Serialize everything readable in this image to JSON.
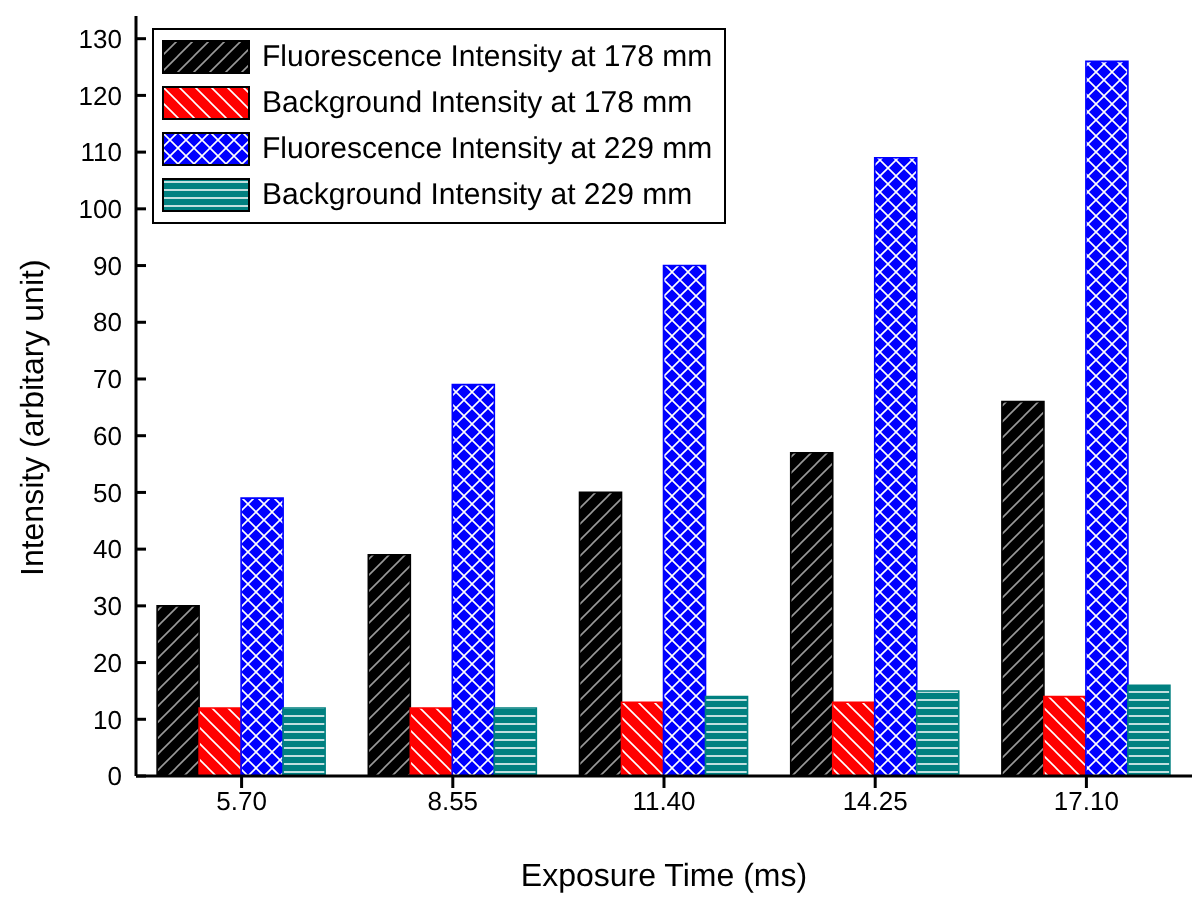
{
  "chart_data": {
    "type": "bar",
    "xlabel": "Exposure Time (ms)",
    "ylabel": "Intensity (arbitary unit)",
    "categories": [
      "5.70",
      "8.55",
      "11.40",
      "14.25",
      "17.10"
    ],
    "series": [
      {
        "name": "Fluorescence Intensity at 178 mm",
        "color": "#000000",
        "values": [
          30,
          39,
          50,
          57,
          66
        ]
      },
      {
        "name": "Background Intensity at 178 mm",
        "color": "#ff0000",
        "values": [
          12,
          12,
          13,
          13,
          14
        ]
      },
      {
        "name": "Fluorescence Intensity at 229 mm",
        "color": "#0000ff",
        "values": [
          49,
          69,
          90,
          109,
          126
        ]
      },
      {
        "name": "Background Intensity at 229 mm",
        "color": "#008080",
        "values": [
          12,
          12,
          14,
          15,
          16
        ]
      }
    ],
    "ylim": [
      0,
      134
    ],
    "yticks": [
      0,
      10,
      20,
      30,
      40,
      50,
      60,
      70,
      80,
      90,
      100,
      110,
      120,
      130
    ],
    "grid": false,
    "legend": "top left"
  }
}
